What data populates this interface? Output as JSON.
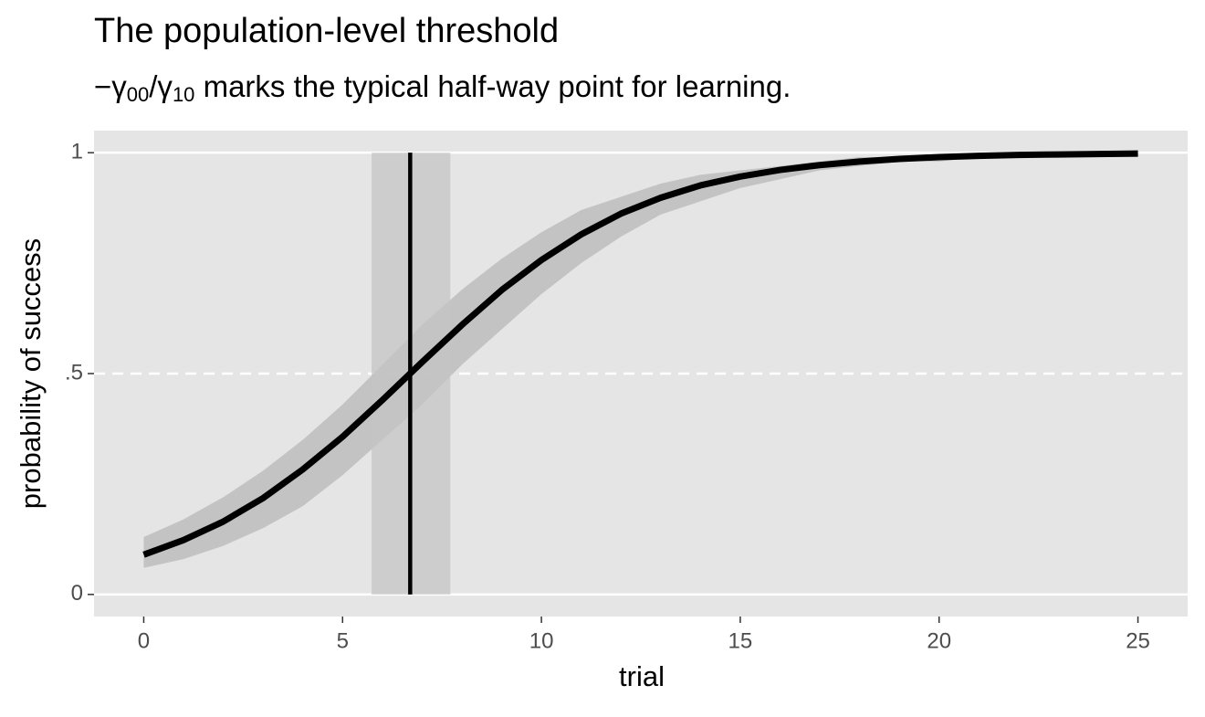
{
  "chart_data": {
    "type": "line",
    "title": "The population-level threshold",
    "subtitle": {
      "prefix": "−γ",
      "sub1": "00",
      "mid": "/γ",
      "sub2": "10",
      "rest": " marks the typical half-way point for learning."
    },
    "x_label": "trial",
    "y_label": "probability of success",
    "x": [
      0,
      1,
      2,
      3,
      4,
      5,
      6,
      7,
      8,
      9,
      10,
      11,
      12,
      13,
      14,
      15,
      16,
      17,
      18,
      19,
      20,
      21,
      22,
      23,
      24,
      25
    ],
    "series": [
      {
        "color": "#000000",
        "values": [
          0.09,
          0.123,
          0.165,
          0.218,
          0.283,
          0.357,
          0.44,
          0.526,
          0.61,
          0.689,
          0.757,
          0.815,
          0.862,
          0.898,
          0.926,
          0.946,
          0.961,
          0.972,
          0.98,
          0.986,
          0.99,
          0.993,
          0.995,
          0.996,
          0.997,
          0.998
        ],
        "lower": [
          0.06,
          0.08,
          0.11,
          0.15,
          0.2,
          0.27,
          0.35,
          0.43,
          0.52,
          0.6,
          0.68,
          0.75,
          0.81,
          0.86,
          0.89,
          0.92,
          0.94,
          0.96,
          0.97,
          0.98,
          0.98,
          0.99,
          0.99,
          0.99,
          0.99,
          0.99
        ],
        "upper": [
          0.13,
          0.17,
          0.22,
          0.28,
          0.35,
          0.43,
          0.52,
          0.61,
          0.69,
          0.76,
          0.82,
          0.87,
          0.9,
          0.93,
          0.95,
          0.96,
          0.97,
          0.98,
          0.99,
          0.99,
          0.99,
          1.0,
          1.0,
          1.0,
          1.0,
          1.0
        ]
      }
    ],
    "ribbon_color": "#bdbdbd",
    "threshold": {
      "x": 6.7,
      "lower": 5.73,
      "upper": 7.71,
      "color": "#000000",
      "band_color": "#c4c4c4"
    },
    "xlim": [
      -1.25,
      26.25
    ],
    "ylim": [
      -0.05,
      1.05
    ],
    "xticks": [
      0,
      5,
      10,
      15,
      20,
      25
    ],
    "yticks": [
      0,
      {
        "value": 0.5,
        "label": ".5"
      },
      1
    ],
    "ytick_line_styles": [
      "solid",
      "dashed",
      "solid"
    ],
    "background": "#e5e5e5"
  }
}
